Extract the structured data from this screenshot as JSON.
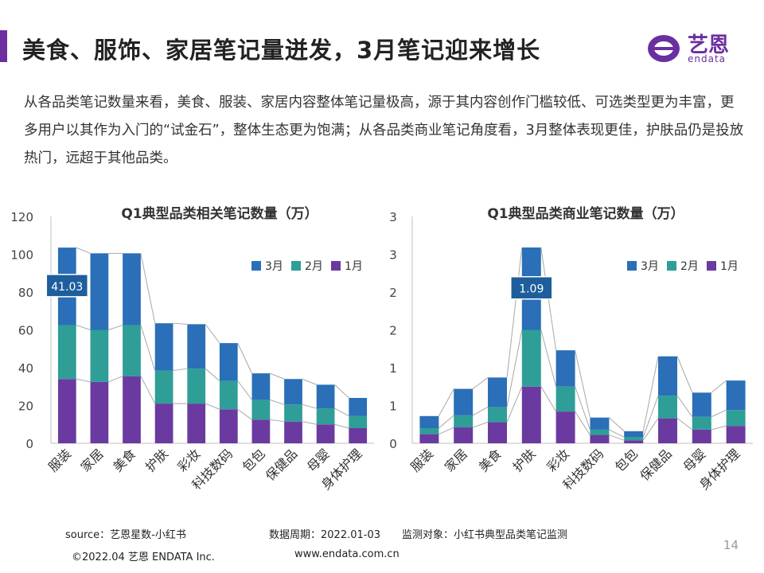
{
  "page": {
    "title": "美食、服饰、家居笔记量迸发，3月笔记迎来增长",
    "logo_name": "艺恩",
    "logo_sub": "endata",
    "description": "从各品类笔记数量来看，美食、服装、家居内容整体笔记量极高，源于其内容创作门槛较低、可选类型更为丰富，更多用户以其作为入门的“试金石”，整体生态更为饱满；从各品类商业笔记角度看，3月整体表现更佳，护肤品仍是投放热门，远超于其他品类。",
    "source": "source：艺恩星数-小红书",
    "period": "数据周期：2022.01-03",
    "monitor": "监测对象：小红书典型品类笔记监测",
    "copyright": "©2022.04 艺恩 ENDATA Inc.",
    "website": "www.endata.com.cn",
    "page_number": "14",
    "colors": {
      "accent": "#6b2fa0",
      "m1": "#6a3aa0",
      "m2": "#2e9e97",
      "m3": "#2a6fb7"
    }
  },
  "chart_data": [
    {
      "type": "bar",
      "stacked": true,
      "title": "Q1典型品类相关笔记数量（万）",
      "categories": [
        "服装",
        "家居",
        "美食",
        "护肤",
        "彩妆",
        "科技数码",
        "包包",
        "保健品",
        "母婴",
        "身体护理"
      ],
      "series": [
        {
          "name": "1月",
          "values": [
            34,
            32.5,
            35.5,
            21,
            21,
            18,
            12.5,
            11.5,
            10,
            8
          ]
        },
        {
          "name": "2月",
          "values": [
            28.5,
            27.5,
            27,
            17.5,
            18.5,
            15,
            10.5,
            9,
            8.5,
            6.5
          ]
        },
        {
          "name": "3月",
          "values": [
            41.03,
            40.5,
            38,
            25,
            23.5,
            20,
            14,
            13.5,
            12.5,
            9.5
          ]
        }
      ],
      "legend": [
        "3月",
        "2月",
        "1月"
      ],
      "annotation": {
        "label": "41.03",
        "category": "服装",
        "series": "3月"
      },
      "yticks": [
        "0",
        "20",
        "40",
        "60",
        "80",
        "100",
        "120"
      ],
      "ylim": [
        0,
        120
      ],
      "xlabel": "",
      "ylabel": "",
      "legend_position": "top-right"
    },
    {
      "type": "bar",
      "stacked": true,
      "title": "Q1典型品类商业笔记数量（万）",
      "categories": [
        "服装",
        "家居",
        "美食",
        "护肤",
        "彩妆",
        "科技数码",
        "包包",
        "保健品",
        "母婴",
        "身体护理"
      ],
      "series": [
        {
          "name": "1月",
          "values": [
            0.12,
            0.21,
            0.28,
            0.75,
            0.42,
            0.11,
            0.04,
            0.33,
            0.18,
            0.23
          ]
        },
        {
          "name": "2月",
          "values": [
            0.08,
            0.16,
            0.2,
            0.75,
            0.33,
            0.07,
            0.04,
            0.3,
            0.17,
            0.21
          ]
        },
        {
          "name": "3月",
          "values": [
            0.16,
            0.35,
            0.39,
            1.09,
            0.48,
            0.16,
            0.08,
            0.52,
            0.32,
            0.39
          ]
        }
      ],
      "legend": [
        "3月",
        "2月",
        "1月"
      ],
      "annotation": {
        "label": "1.09",
        "category": "护肤",
        "series": "3月"
      },
      "yticks": [
        "0",
        "1",
        "1",
        "2",
        "2",
        "3",
        "3"
      ],
      "ylim": [
        0,
        3
      ],
      "xlabel": "",
      "ylabel": "",
      "legend_position": "top-right"
    }
  ]
}
